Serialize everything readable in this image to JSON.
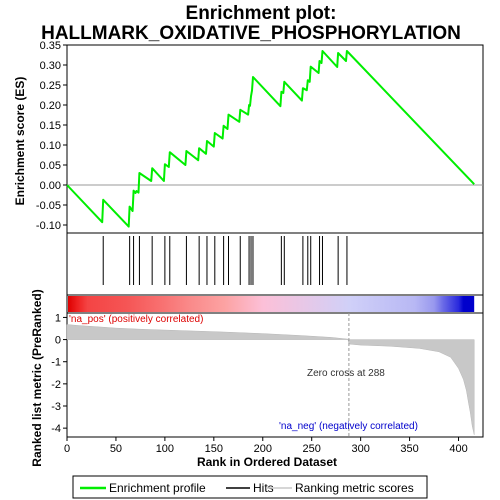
{
  "chart_data": {
    "type": "line",
    "title": "Enrichment plot:",
    "subtitle": "HALLMARK_OXIDATIVE_PHOSPHORYLATION",
    "xlabel": "Rank in Ordered Dataset",
    "es_ylabel": "Enrichment score (ES)",
    "metric_ylabel": "Ranked list metric (PreRanked)",
    "xlim": [
      0,
      425
    ],
    "es_ylim": [
      -0.12,
      0.35
    ],
    "metric_ylim": [
      -4.4,
      1.2
    ],
    "x_ticks": [
      0,
      50,
      100,
      150,
      200,
      250,
      300,
      350,
      400
    ],
    "es_ticks": [
      -0.1,
      -0.05,
      0.0,
      0.05,
      0.1,
      0.15,
      0.2,
      0.25,
      0.3,
      0.35
    ],
    "es_tick_labels": [
      "-0.10",
      "-0.05",
      "0.00",
      "0.05",
      "0.10",
      "0.15",
      "0.20",
      "0.25",
      "0.30",
      "0.35"
    ],
    "metric_ticks": [
      1,
      0,
      -1,
      -2,
      -3,
      -4
    ],
    "metric_tick_labels": [
      "1",
      "0",
      "-1",
      "-2",
      "-3",
      "-4"
    ],
    "grid": false,
    "enrichment_profile": {
      "name": "Enrichment profile",
      "color": "#00ee00",
      "x": [
        0,
        36,
        37,
        63,
        64,
        67,
        68,
        70,
        71,
        73,
        74,
        86,
        87,
        99,
        100,
        104,
        105,
        121,
        122,
        134,
        135,
        142,
        143,
        150,
        151,
        159,
        160,
        164,
        165,
        176,
        177,
        185,
        186,
        187,
        188,
        189,
        190,
        218,
        219,
        221,
        222,
        240,
        241,
        245,
        246,
        248,
        249,
        257,
        258,
        260,
        261,
        276,
        277,
        285,
        286,
        416
      ],
      "y": [
        0.0,
        -0.093,
        -0.037,
        -0.104,
        -0.054,
        -0.065,
        -0.014,
        -0.02,
        -0.015,
        -0.019,
        0.03,
        0.01,
        0.042,
        0.01,
        0.052,
        0.045,
        0.082,
        0.05,
        0.085,
        0.062,
        0.092,
        0.078,
        0.11,
        0.096,
        0.13,
        0.116,
        0.148,
        0.14,
        0.176,
        0.158,
        0.188,
        0.176,
        0.2,
        0.198,
        0.222,
        0.236,
        0.27,
        0.197,
        0.233,
        0.23,
        0.258,
        0.211,
        0.242,
        0.237,
        0.262,
        0.258,
        0.296,
        0.28,
        0.31,
        0.305,
        0.335,
        0.295,
        0.33,
        0.31,
        0.335,
        0.002
      ]
    },
    "hits": {
      "name": "Hits",
      "color": "#000000",
      "x": [
        37,
        64,
        68,
        74,
        87,
        100,
        105,
        122,
        135,
        143,
        151,
        160,
        165,
        177,
        186,
        188,
        190,
        219,
        222,
        241,
        246,
        249,
        258,
        261,
        277,
        286
      ]
    },
    "ranking_metric": {
      "name": "Ranking metric scores",
      "color": "#c8c8c8",
      "x": [
        0,
        10,
        30,
        50,
        80,
        120,
        160,
        200,
        240,
        270,
        287,
        288,
        300,
        330,
        360,
        380,
        392,
        400,
        405,
        408,
        410,
        412,
        414,
        416
      ],
      "y": [
        0.68,
        0.64,
        0.58,
        0.52,
        0.46,
        0.4,
        0.34,
        0.27,
        0.18,
        0.1,
        0.02,
        -0.2,
        -0.25,
        -0.3,
        -0.4,
        -0.55,
        -0.8,
        -1.3,
        -1.8,
        -2.3,
        -2.8,
        -3.3,
        -3.9,
        -4.3
      ]
    },
    "color_bar": {
      "stops": [
        {
          "x": 0,
          "color": "#dd0000"
        },
        {
          "x": 10,
          "color": "#ee2222"
        },
        {
          "x": 20,
          "color": "#f44444"
        },
        {
          "x": 60,
          "color": "#f55555"
        },
        {
          "x": 95,
          "color": "#f87070"
        },
        {
          "x": 125,
          "color": "#fa8a8a"
        },
        {
          "x": 160,
          "color": "#fca2a2"
        },
        {
          "x": 200,
          "color": "#fcc0d8"
        },
        {
          "x": 288,
          "color": "#d0d0f8"
        },
        {
          "x": 355,
          "color": "#b8b8f4"
        },
        {
          "x": 375,
          "color": "#9898ee"
        },
        {
          "x": 385,
          "color": "#6666e6"
        },
        {
          "x": 400,
          "color": "#2a2add"
        },
        {
          "x": 405,
          "color": "#0000cc"
        },
        {
          "x": 416,
          "color": "#0000cc"
        }
      ]
    },
    "zero_cross": 288,
    "annotations": {
      "pos": "'na_pos' (positively correlated)",
      "neg": "'na_neg' (negatively correlated)",
      "zero": "Zero cross at 288"
    },
    "legend_placement": "bottom",
    "legend": [
      "Enrichment profile",
      "Hits",
      "Ranking metric scores"
    ]
  }
}
